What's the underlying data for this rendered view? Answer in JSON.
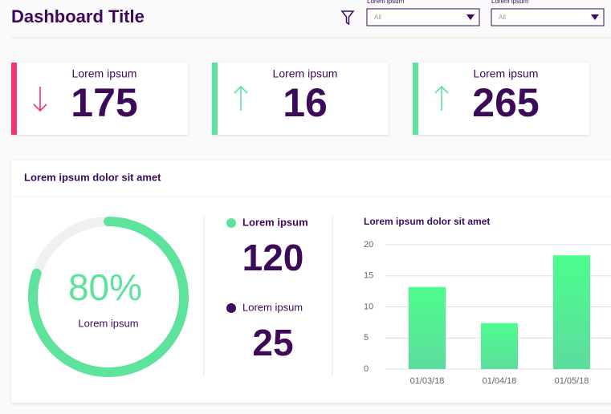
{
  "header": {
    "title": "Dashboard Title",
    "filters": [
      {
        "label": "Lorem ipsum",
        "value": "All"
      },
      {
        "label": "Lorem ipsum",
        "value": "All"
      }
    ]
  },
  "kpis": [
    {
      "label": "Lorem ipsum",
      "value": 175,
      "trend": "down",
      "color": "#f0356f"
    },
    {
      "label": "Lorem ipsum",
      "value": 16,
      "trend": "up",
      "color": "#5de39b"
    },
    {
      "label": "Lorem ipsum",
      "value": 265,
      "trend": "up",
      "color": "#5de39b"
    }
  ],
  "panel": {
    "title": "Lorem ipsum dolor sit amet",
    "donut": {
      "value": 80,
      "value_label": "80%",
      "label": "Lorem ipsum",
      "color": "#5de39b"
    },
    "stats": [
      {
        "label": "Lorem ipsum",
        "value": 120,
        "color": "#5de39b"
      },
      {
        "label": "Lorem ipsum",
        "value": 25,
        "color": "#3d0a5a"
      }
    ],
    "chart_data": {
      "type": "bar",
      "title": "Lorem ipsum dolor sit amet",
      "categories": [
        "01/03/18",
        "01/04/18",
        "01/05/18"
      ],
      "values": [
        13.2,
        7.4,
        18.3
      ],
      "color": "#52f28f",
      "ylim": [
        0,
        20
      ],
      "yticks": [
        0,
        5,
        10,
        15,
        20
      ],
      "grid": true
    }
  }
}
